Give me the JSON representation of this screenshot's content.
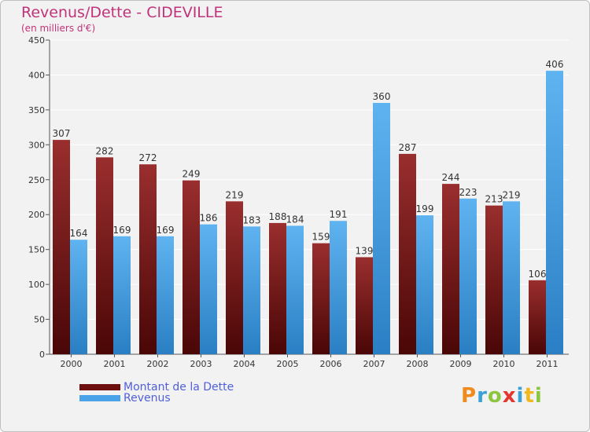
{
  "chart_data": {
    "type": "bar",
    "title": "Revenus/Dette - CIDEVILLE",
    "subtitle": "(en milliers d'€)",
    "xlabel": "",
    "ylabel": "",
    "ylim": [
      0,
      450
    ],
    "yticks": [
      0,
      50,
      100,
      150,
      200,
      250,
      300,
      350,
      400,
      450
    ],
    "grid": true,
    "legend": "bottom-left",
    "categories": [
      "2000",
      "2001",
      "2002",
      "2003",
      "2004",
      "2005",
      "2006",
      "2007",
      "2008",
      "2009",
      "2010",
      "2011"
    ],
    "series": [
      {
        "name": "Montant de la Dette",
        "color": "#7a1616",
        "values": [
          307,
          282,
          272,
          249,
          219,
          188,
          159,
          139,
          287,
          244,
          213,
          106
        ]
      },
      {
        "name": "Revenus",
        "color": "#4aa3e8",
        "values": [
          164,
          169,
          169,
          186,
          183,
          184,
          191,
          360,
          199,
          223,
          219,
          406
        ]
      }
    ]
  },
  "logo": {
    "text": "Proxiti",
    "colors": [
      "#f08a1c",
      "#3aa0d8",
      "#8cc63f",
      "#e2362f",
      "#3aa0d8",
      "#f0b81c",
      "#8cc63f"
    ]
  }
}
